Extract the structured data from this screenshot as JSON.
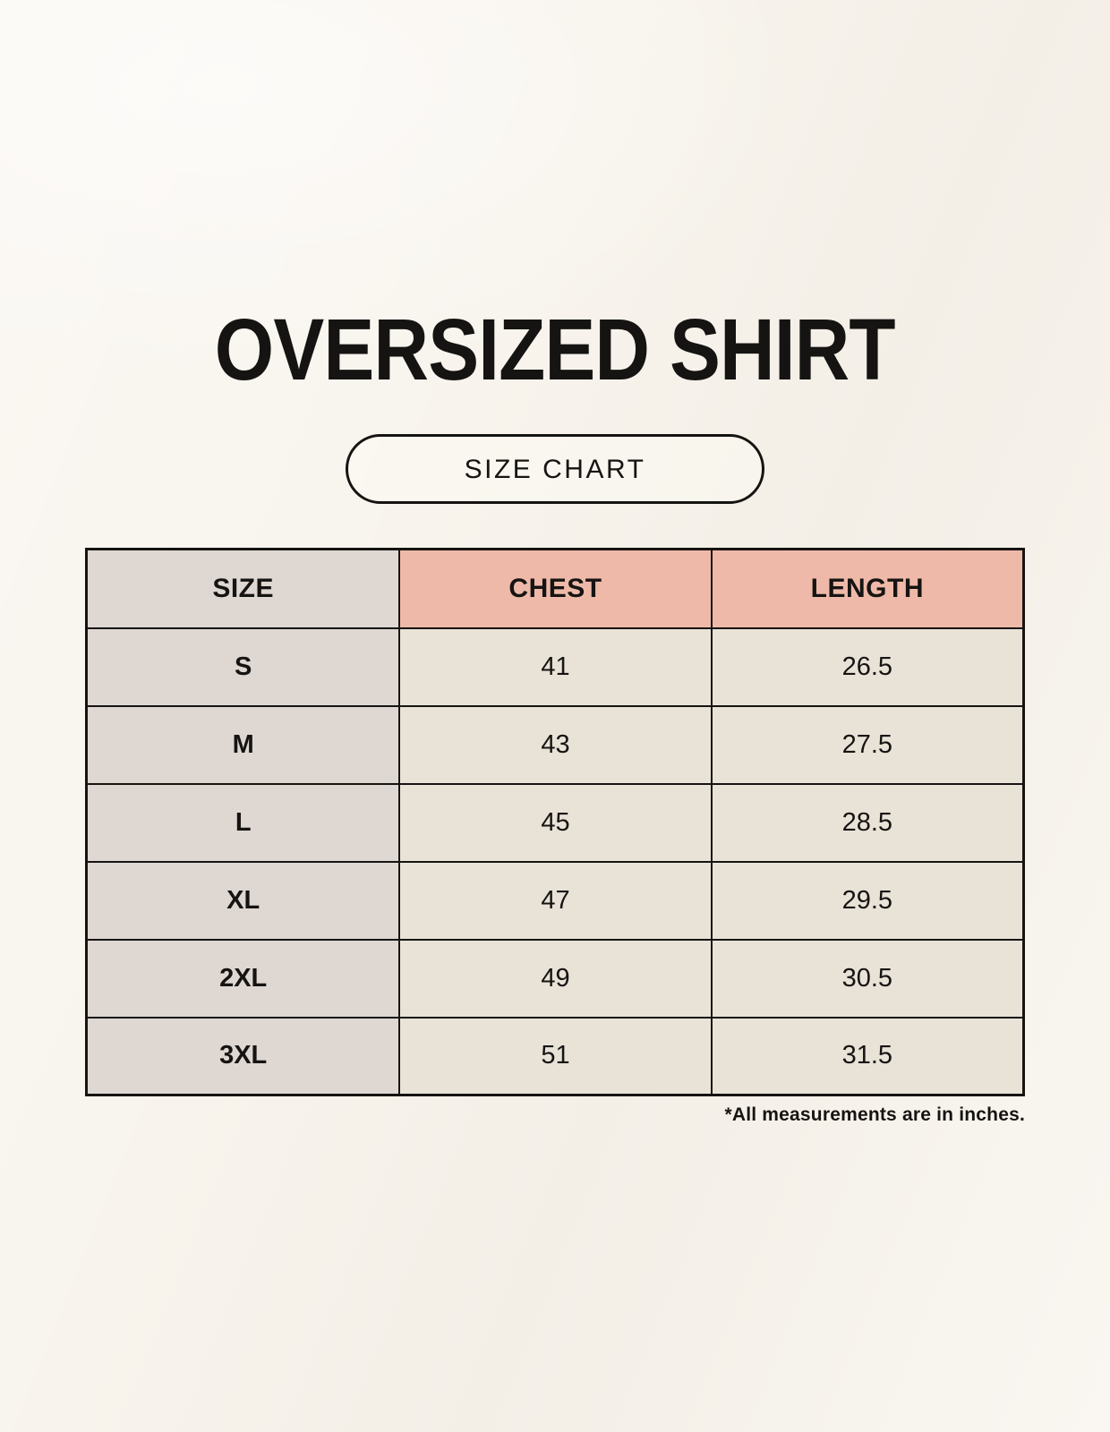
{
  "page": {
    "title": "OVERSIZED SHIRT",
    "badge_label": "SIZE CHART",
    "footnote": "*All measurements are in inches."
  },
  "table": {
    "columns": [
      "SIZE",
      "CHEST",
      "LENGTH"
    ],
    "rows": [
      [
        "S",
        "41",
        "26.5"
      ],
      [
        "M",
        "43",
        "27.5"
      ],
      [
        "L",
        "45",
        "28.5"
      ],
      [
        "XL",
        "47",
        "29.5"
      ],
      [
        "2XL",
        "49",
        "30.5"
      ],
      [
        "3XL",
        "51",
        "31.5"
      ]
    ]
  },
  "chart_data": {
    "type": "table",
    "title": "OVERSIZED SHIRT",
    "columns": [
      "SIZE",
      "CHEST",
      "LENGTH"
    ],
    "rows": [
      {
        "size": "S",
        "chest": 41,
        "length": 26.5
      },
      {
        "size": "M",
        "chest": 43,
        "length": 27.5
      },
      {
        "size": "L",
        "chest": 45,
        "length": 28.5
      },
      {
        "size": "XL",
        "chest": 47,
        "length": 29.5
      },
      {
        "size": "2XL",
        "chest": 49,
        "length": 30.5
      },
      {
        "size": "3XL",
        "chest": 51,
        "length": 31.5
      }
    ],
    "units_note": "*All measurements are in inches."
  },
  "colors": {
    "background": "#f8f4ed",
    "ink": "#161412",
    "header_size_bg": "#ded7d2",
    "header_measure_bg": "#eeb9a8",
    "row_label_bg": "#ded7d2",
    "row_value_bg": "#e9e2d7"
  }
}
